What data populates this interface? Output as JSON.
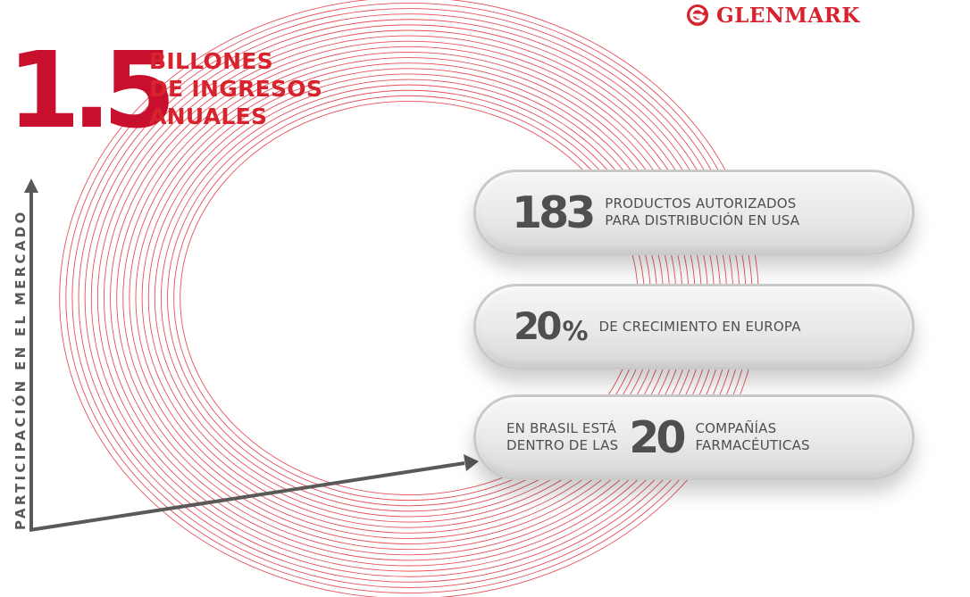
{
  "brand": {
    "name": "GLENMARK",
    "color": "#d6232e",
    "icon": "glenmark-logo-icon"
  },
  "headline": {
    "value": "1.5",
    "lines": [
      "BILLONES",
      "DE INGRESOS",
      "ANUALES"
    ],
    "color": "#c8102e"
  },
  "axis": {
    "label": "PARTICIPACIÓN EN EL MERCADO",
    "color": "#595959"
  },
  "stats": [
    {
      "number": "183",
      "lines": [
        "PRODUCTOS AUTORIZADOS",
        "PARA DISTRIBUCIÓN EN USA"
      ]
    },
    {
      "number": "20",
      "suffix": "%",
      "lines": [
        "DE CRECIMIENTO EN EUROPA"
      ]
    },
    {
      "prefix_lines": [
        "EN BRASIL ESTÁ",
        "DENTRO DE LAS"
      ],
      "number": "20",
      "lines": [
        "COMPAÑÍAS",
        "FARMACÉUTICAS"
      ]
    }
  ],
  "colors": {
    "ring": "#e0323c",
    "pill_text": "#4f4f4f",
    "pill_bg": "#ececec"
  }
}
